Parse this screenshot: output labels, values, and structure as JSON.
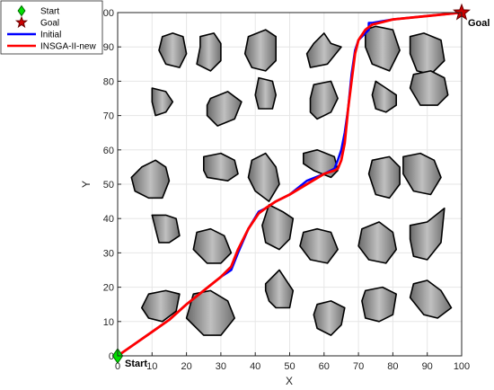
{
  "chart_data": {
    "type": "line",
    "title": "",
    "xlabel": "X",
    "ylabel": "Y",
    "xlim": [
      0,
      100
    ],
    "ylim": [
      0,
      100
    ],
    "xticks": [
      0,
      10,
      20,
      30,
      40,
      50,
      60,
      70,
      80,
      90,
      100
    ],
    "yticks": [
      0,
      10,
      20,
      30,
      40,
      50,
      60,
      70,
      80,
      90,
      100
    ],
    "grid": true,
    "legend_position": "top-left",
    "legend": [
      {
        "label": "Start",
        "marker": "diamond",
        "color": "#00cc00"
      },
      {
        "label": "Goal",
        "marker": "star",
        "color": "#cc0000"
      },
      {
        "label": "Initial",
        "marker": "line",
        "color": "#0000ff"
      },
      {
        "label": "INSGA-II-new",
        "marker": "line",
        "color": "#ff0000"
      }
    ],
    "start": {
      "x": 0,
      "y": 0,
      "label": "Start"
    },
    "goal": {
      "x": 100,
      "y": 100,
      "label": "Goal"
    },
    "series": [
      {
        "name": "Initial",
        "color": "#0000ff",
        "x": [
          0,
          5,
          10,
          15,
          20,
          25,
          30,
          33,
          35,
          38,
          41,
          43,
          46,
          50,
          55,
          60,
          63,
          64,
          65,
          66,
          67,
          68,
          69,
          70,
          72,
          73,
          73,
          74,
          80,
          90,
          100
        ],
        "y": [
          0,
          3.5,
          7,
          10.5,
          15,
          19,
          23,
          25,
          30,
          37,
          42,
          43,
          45,
          47,
          51,
          53,
          54.5,
          57,
          60,
          65,
          72,
          82,
          89,
          92,
          94,
          95,
          97,
          97,
          98,
          99,
          100
        ]
      },
      {
        "name": "INSGA-II-new",
        "color": "#ff0000",
        "x": [
          0,
          5,
          10,
          15,
          20,
          25,
          30,
          33,
          35,
          38,
          41,
          43,
          46,
          50,
          55,
          60,
          63,
          64,
          65,
          66,
          67,
          68,
          69,
          70,
          72,
          74,
          76,
          80,
          90,
          100
        ],
        "y": [
          0,
          3.5,
          7,
          10.5,
          15,
          19,
          23,
          26,
          31,
          37,
          41.5,
          43,
          45,
          47,
          50,
          53,
          54,
          54.5,
          57,
          62,
          72,
          80,
          88,
          92,
          95,
          96.5,
          97,
          98,
          99,
          100
        ]
      }
    ],
    "obstacles": [
      {
        "x": [
          13,
          16,
          19,
          20,
          18,
          14,
          12
        ],
        "y": [
          93,
          94,
          93,
          88,
          84,
          85,
          89
        ]
      },
      {
        "x": [
          24,
          28,
          30,
          30,
          27,
          23,
          24
        ],
        "y": [
          93,
          94,
          91,
          86,
          83,
          85,
          90
        ]
      },
      {
        "x": [
          38,
          43,
          46,
          46,
          43,
          39,
          37
        ],
        "y": [
          93,
          95,
          93,
          86,
          83,
          84,
          88
        ]
      },
      {
        "x": [
          57,
          60,
          62,
          65,
          61,
          56,
          55
        ],
        "y": [
          91,
          94,
          91,
          90,
          85,
          84,
          88
        ]
      },
      {
        "x": [
          72,
          75,
          80,
          82,
          79,
          74,
          72
        ],
        "y": [
          95,
          96,
          95,
          89,
          83,
          85,
          90
        ]
      },
      {
        "x": [
          85,
          89,
          94,
          95,
          91,
          87,
          85
        ],
        "y": [
          93,
          94,
          92,
          86,
          82,
          83,
          88
        ]
      },
      {
        "x": [
          10,
          14,
          16,
          14,
          11,
          10
        ],
        "y": [
          78,
          77,
          74,
          71,
          70,
          74
        ]
      },
      {
        "x": [
          27,
          32,
          36,
          34,
          29,
          26,
          26
        ],
        "y": [
          75,
          77,
          74,
          69,
          67,
          70,
          73
        ]
      },
      {
        "x": [
          41,
          45,
          46,
          45,
          41,
          40
        ],
        "y": [
          81,
          80,
          76,
          72,
          72,
          76
        ]
      },
      {
        "x": [
          57,
          62,
          64,
          62,
          58,
          56,
          56
        ],
        "y": [
          79,
          80,
          75,
          71,
          69,
          71,
          75
        ]
      },
      {
        "x": [
          75,
          78,
          81,
          81,
          78,
          75,
          74
        ],
        "y": [
          80,
          78,
          76,
          73,
          71,
          72,
          76
        ]
      },
      {
        "x": [
          86,
          91,
          95,
          96,
          93,
          88,
          85
        ],
        "y": [
          82,
          83,
          81,
          76,
          73,
          73,
          78
        ]
      },
      {
        "x": [
          7,
          11,
          14,
          15,
          13,
          9,
          5,
          4
        ],
        "y": [
          55,
          57,
          55,
          51,
          46,
          46,
          48,
          52
        ]
      },
      {
        "x": [
          25,
          30,
          34,
          35,
          32,
          26,
          25
        ],
        "y": [
          58,
          59,
          57,
          53,
          51,
          52,
          54
        ]
      },
      {
        "x": [
          39,
          43,
          46,
          47,
          44,
          40,
          38
        ],
        "y": [
          57,
          59,
          55,
          50,
          45,
          48,
          52
        ]
      },
      {
        "x": [
          54,
          58,
          63,
          64,
          62,
          57,
          54
        ],
        "y": [
          59,
          60,
          58,
          54,
          52,
          54,
          56
        ]
      },
      {
        "x": [
          74,
          79,
          82,
          82,
          79,
          75,
          73
        ],
        "y": [
          57,
          58,
          55,
          50,
          46,
          47,
          53
        ]
      },
      {
        "x": [
          83,
          88,
          92,
          94,
          91,
          86,
          83
        ],
        "y": [
          58,
          59,
          57,
          52,
          47,
          48,
          53
        ]
      },
      {
        "x": [
          10,
          14,
          17,
          18,
          15,
          12,
          11
        ],
        "y": [
          41,
          41,
          40,
          35,
          33,
          33,
          37
        ]
      },
      {
        "x": [
          23,
          27,
          31,
          33,
          30,
          26,
          22
        ],
        "y": [
          36,
          37,
          35,
          30,
          27,
          27,
          31
        ]
      },
      {
        "x": [
          44,
          48,
          51,
          50,
          47,
          43,
          42
        ],
        "y": [
          44,
          42,
          40,
          34,
          31,
          33,
          38
        ]
      },
      {
        "x": [
          54,
          58,
          62,
          64,
          61,
          56,
          53
        ],
        "y": [
          36,
          37,
          36,
          31,
          27,
          28,
          32
        ]
      },
      {
        "x": [
          71,
          76,
          80,
          81,
          78,
          73,
          70
        ],
        "y": [
          37,
          39,
          36,
          31,
          27,
          28,
          32
        ]
      },
      {
        "x": [
          85,
          90,
          95,
          94,
          90,
          86,
          85
        ],
        "y": [
          38,
          39,
          43,
          33,
          28,
          29,
          34
        ]
      },
      {
        "x": [
          9,
          14,
          18,
          17,
          13,
          9,
          7
        ],
        "y": [
          18,
          19,
          18,
          13,
          10,
          11,
          14
        ]
      },
      {
        "x": [
          22,
          27,
          32,
          34,
          30,
          25,
          20
        ],
        "y": [
          18,
          19,
          16,
          11,
          6,
          6,
          11
        ]
      },
      {
        "x": [
          43,
          47,
          51,
          50,
          46,
          44,
          43
        ],
        "y": [
          21,
          25,
          19,
          14,
          14,
          16,
          19
        ]
      },
      {
        "x": [
          58,
          62,
          66,
          65,
          62,
          58,
          57
        ],
        "y": [
          15,
          16,
          14,
          9,
          6,
          8,
          12
        ]
      },
      {
        "x": [
          72,
          77,
          81,
          80,
          76,
          72,
          71
        ],
        "y": [
          19,
          20,
          18,
          12,
          10,
          11,
          16
        ]
      },
      {
        "x": [
          86,
          90,
          94,
          97,
          93,
          89,
          85
        ],
        "y": [
          21,
          22,
          19,
          14,
          11,
          12,
          17
        ]
      }
    ]
  }
}
